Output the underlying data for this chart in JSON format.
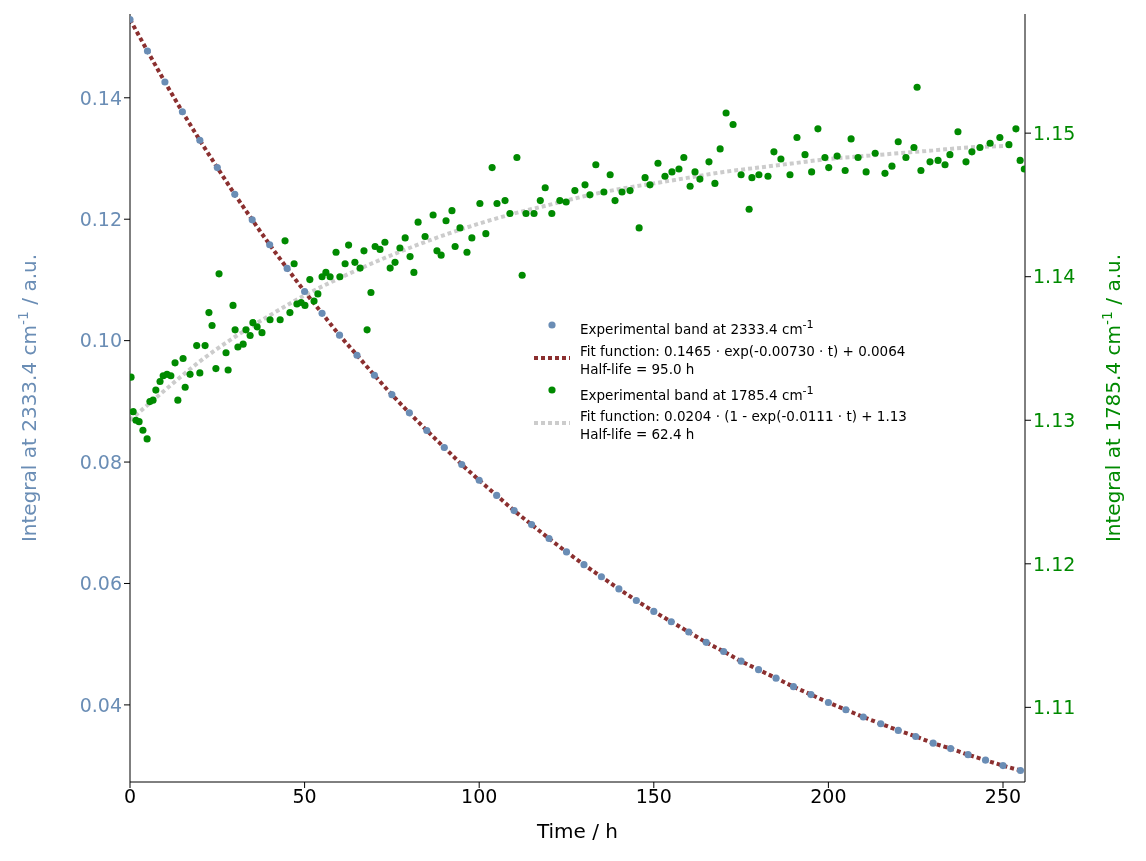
{
  "chart_data": {
    "type": "scatter",
    "xlabel": "Time / h",
    "ylabel": "Integral at 2333.4 cm$^{-1}$ / a.u.",
    "y2label": "Integral at 1785.4 cm$^{-1}$ / a.u.",
    "xlim": [
      0,
      256.3
    ],
    "xticks": [
      0,
      50,
      100,
      150,
      200,
      250
    ],
    "ylim": [
      0.0273,
      0.1538
    ],
    "yticks": [
      0.04,
      0.06,
      0.08,
      {
        "value": 0.1,
        "label": "0.10"
      },
      0.12,
      0.14
    ],
    "y2lim": [
      1.1048,
      1.1583
    ],
    "y2ticks": [
      1.11,
      1.12,
      1.13,
      1.14,
      1.15
    ],
    "grid": false,
    "legend": "right",
    "series": [
      {
        "name": "Experimental band at 2333.4 cm$^{-1}$",
        "marker": "circle",
        "color": "#6a8db5",
        "x": [
          0,
          5,
          10,
          15,
          20,
          25,
          30,
          35,
          40,
          45,
          50,
          55,
          60,
          65,
          70,
          75,
          80,
          85,
          90,
          95,
          100,
          105,
          110,
          115,
          120,
          125,
          130,
          135,
          140,
          145,
          150,
          155,
          160,
          165,
          170,
          175,
          180,
          185,
          190,
          195,
          200,
          205,
          210,
          215,
          220,
          225,
          230,
          235,
          240,
          245,
          250,
          255
        ],
        "values": [
          0.1529,
          0.1477,
          0.1426,
          0.1377,
          0.133,
          0.1285,
          0.1241,
          0.1199,
          0.1158,
          0.1119,
          0.1081,
          0.1045,
          0.1009,
          0.0976,
          0.0943,
          0.0911,
          0.0881,
          0.0852,
          0.0824,
          0.0796,
          0.077,
          0.0745,
          0.072,
          0.0697,
          0.0674,
          0.0652,
          0.0631,
          0.0611,
          0.0591,
          0.0572,
          0.0554,
          0.0537,
          0.052,
          0.0503,
          0.0488,
          0.0472,
          0.0458,
          0.0444,
          0.043,
          0.0417,
          0.0404,
          0.0392,
          0.038,
          0.0369,
          0.0358,
          0.0348,
          0.0337,
          0.0328,
          0.0318,
          0.0309,
          0.03,
          0.0292
        ]
      },
      {
        "name": "Fit function: 0.1465 · exp(-0.00730 · t) + 0.0064\nHalf-life = 95.0 h",
        "type": "line",
        "line_style": "dotted",
        "marker": "none",
        "color": "#8b2f2f",
        "x": [
          0,
          5,
          10,
          15,
          20,
          25,
          30,
          35,
          40,
          45,
          50,
          55,
          60,
          65,
          70,
          75,
          80,
          85,
          90,
          95,
          100,
          105,
          110,
          115,
          120,
          125,
          130,
          135,
          140,
          145,
          150,
          155,
          160,
          165,
          170,
          175,
          180,
          185,
          190,
          195,
          200,
          205,
          210,
          215,
          220,
          225,
          230,
          235,
          240,
          245,
          250,
          255
        ],
        "values": [
          0.1529,
          0.1477,
          0.1426,
          0.1377,
          0.133,
          0.1285,
          0.1241,
          0.1199,
          0.1158,
          0.1119,
          0.1081,
          0.1045,
          0.1009,
          0.0976,
          0.0943,
          0.0911,
          0.0881,
          0.0852,
          0.0824,
          0.0796,
          0.077,
          0.0745,
          0.072,
          0.0697,
          0.0674,
          0.0652,
          0.0631,
          0.0611,
          0.0591,
          0.0572,
          0.0554,
          0.0537,
          0.052,
          0.0503,
          0.0488,
          0.0472,
          0.0458,
          0.0444,
          0.043,
          0.0417,
          0.0404,
          0.0392,
          0.038,
          0.0369,
          0.0358,
          0.0348,
          0.0337,
          0.0328,
          0.0318,
          0.0309,
          0.03,
          0.0292
        ]
      },
      {
        "name": "Experimental band at 1785.4 cm$^{-1}$",
        "marker": "circle",
        "axis": "y2",
        "color": "#008a00",
        "x": [
          0.3,
          0.9,
          1.7,
          2.6,
          3.7,
          4.9,
          5.7,
          6.6,
          7.4,
          8.6,
          9.5,
          10.6,
          11.7,
          12.9,
          13.7,
          15.2,
          15.8,
          17.2,
          19.1,
          20.0,
          21.5,
          22.6,
          23.5,
          24.6,
          25.5,
          27.5,
          28.1,
          29.5,
          30.1,
          30.9,
          32.4,
          33.2,
          34.4,
          35.2,
          36.4,
          37.8,
          40.1,
          43.0,
          44.4,
          45.8,
          47.0,
          47.8,
          49.0,
          50.1,
          51.5,
          52.7,
          53.8,
          55.0,
          56.1,
          57.3,
          59.0,
          60.1,
          61.6,
          62.6,
          64.4,
          65.9,
          67.0,
          67.9,
          69.0,
          70.2,
          71.6,
          73.0,
          74.5,
          75.9,
          77.3,
          78.8,
          80.2,
          81.3,
          82.5,
          84.5,
          86.8,
          87.9,
          89.1,
          90.5,
          92.2,
          93.1,
          94.5,
          96.5,
          97.9,
          100.2,
          101.9,
          103.7,
          105.1,
          107.4,
          108.8,
          110.8,
          112.3,
          113.4,
          115.7,
          117.5,
          118.9,
          120.8,
          123.1,
          124.9,
          127.4,
          130.3,
          131.7,
          133.4,
          135.7,
          137.5,
          138.9,
          140.9,
          143.2,
          145.8,
          147.5,
          148.9,
          151.2,
          153.2,
          155.2,
          157.2,
          158.6,
          160.4,
          161.8,
          163.2,
          165.8,
          167.5,
          169.0,
          170.7,
          172.7,
          175.0,
          177.3,
          178.1,
          180.1,
          182.7,
          184.4,
          186.4,
          189.0,
          191.0,
          193.3,
          195.2,
          197.0,
          199.0,
          200.1,
          202.5,
          204.8,
          206.5,
          208.5,
          210.8,
          213.4,
          216.2,
          218.2,
          220.0,
          222.2,
          224.5,
          225.4,
          226.5,
          229.1,
          231.4,
          233.4,
          234.8,
          237.1,
          239.4,
          241.1,
          243.4,
          246.3,
          249.1,
          251.7,
          253.7,
          254.9,
          256.1
        ],
        "values": [
          1.133,
          1.1306,
          1.13,
          1.1299,
          1.1293,
          1.1287,
          1.1313,
          1.1314,
          1.1321,
          1.1327,
          1.1331,
          1.1332,
          1.1331,
          1.134,
          1.1314,
          1.1343,
          1.1323,
          1.1332,
          1.1352,
          1.1333,
          1.1352,
          1.1375,
          1.1366,
          1.1336,
          1.1402,
          1.1347,
          1.1335,
          1.138,
          1.1363,
          1.1351,
          1.1353,
          1.1363,
          1.1359,
          1.1368,
          1.1365,
          1.1361,
          1.137,
          1.137,
          1.1425,
          1.1375,
          1.1409,
          1.1381,
          1.1382,
          1.138,
          1.1398,
          1.1383,
          1.1388,
          1.14,
          1.1403,
          1.14,
          1.1417,
          1.14,
          1.1409,
          1.1422,
          1.141,
          1.1406,
          1.1418,
          1.1363,
          1.1389,
          1.1421,
          1.1419,
          1.1424,
          1.1406,
          1.141,
          1.142,
          1.1427,
          1.1414,
          1.1403,
          1.1438,
          1.1428,
          1.1443,
          1.1418,
          1.1415,
          1.1439,
          1.1446,
          1.1421,
          1.1434,
          1.1417,
          1.1427,
          1.1451,
          1.143,
          1.1476,
          1.1451,
          1.1453,
          1.1444,
          1.1483,
          1.1401,
          1.1444,
          1.1444,
          1.1453,
          1.1462,
          1.1444,
          1.1453,
          1.1452,
          1.146,
          1.1464,
          1.1457,
          1.1478,
          1.1459,
          1.1471,
          1.1453,
          1.1459,
          1.146,
          1.1434,
          1.1469,
          1.1464,
          1.1479,
          1.147,
          1.1473,
          1.1475,
          1.1483,
          1.1463,
          1.1473,
          1.1468,
          1.148,
          1.1465,
          1.1489,
          1.1514,
          1.1506,
          1.1471,
          1.1447,
          1.1469,
          1.1471,
          1.147,
          1.1487,
          1.1482,
          1.1471,
          1.1497,
          1.1485,
          1.1473,
          1.1503,
          1.1483,
          1.1476,
          1.1484,
          1.1474,
          1.1496,
          1.1483,
          1.1473,
          1.1486,
          1.1472,
          1.1477,
          1.1494,
          1.1483,
          1.149,
          1.1532,
          1.1474,
          1.148,
          1.1481,
          1.1478,
          1.1485,
          1.1501,
          1.148,
          1.1487,
          1.149,
          1.1493,
          1.1497,
          1.1492,
          1.1503,
          1.1481,
          1.1475
        ]
      },
      {
        "name": "Fit function: 0.0204 · (1 - exp(-0.0111 · t) + 1.13\nHalf-life = 62.4 h",
        "type": "line",
        "line_style": "dotted",
        "marker": "none",
        "axis": "y2",
        "color": "#cccccc",
        "x": [
          0,
          10,
          20,
          30,
          40,
          50,
          60,
          70,
          80,
          90,
          100,
          110,
          120,
          130,
          140,
          150,
          160,
          170,
          180,
          190,
          200,
          210,
          220,
          230,
          240,
          250
        ],
        "values": [
          1.13,
          1.1321,
          1.1341,
          1.1358,
          1.1373,
          1.1387,
          1.1399,
          1.141,
          1.142,
          1.1429,
          1.1437,
          1.1444,
          1.145,
          1.1456,
          1.1461,
          1.1465,
          1.1469,
          1.1473,
          1.1476,
          1.1479,
          1.1482,
          1.1484,
          1.1486,
          1.1488,
          1.149,
          1.1491
        ]
      }
    ]
  }
}
